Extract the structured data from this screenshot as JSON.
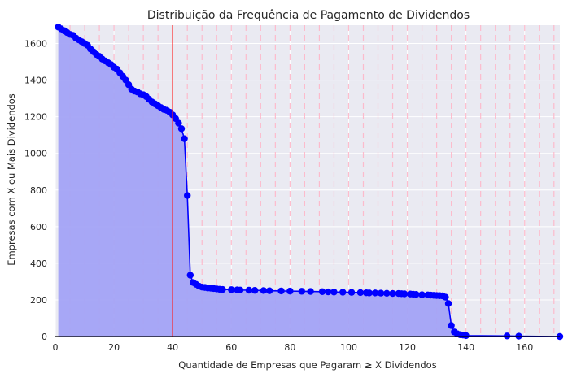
{
  "chart_data": {
    "type": "line",
    "title": "Distribuição da Frequência de Pagamento de Dividendos",
    "xlabel": "Quantidade de Empresas que Pagaram ≥ X Dividendos",
    "ylabel": "Empresas com X ou Mais Dividendos",
    "xlim": [
      0,
      172
    ],
    "ylim": [
      0,
      1700
    ],
    "x_ticks": [
      "0",
      "20",
      "40",
      "60",
      "80",
      "100",
      "120",
      "140",
      "160"
    ],
    "y_ticks": [
      "0",
      "200",
      "400",
      "600",
      "800",
      "1000",
      "1200",
      "1400",
      "1600"
    ],
    "grid": true,
    "fill_under_curve": true,
    "colors": {
      "background": "#eaeaf2",
      "grid": "#ffffff",
      "series": "#0000ff",
      "fill": "#a3a3f5",
      "vline": "#ff2020",
      "dashed_vlines": "#ffb6c8"
    },
    "vertical_line_x": 40,
    "dashed_vlines_x": [
      5,
      10,
      15,
      20,
      25,
      30,
      35,
      45,
      50,
      55,
      60,
      65,
      70,
      75,
      80,
      85,
      90,
      95,
      100,
      105,
      110,
      115,
      120,
      125,
      130,
      135,
      140,
      145,
      150,
      155,
      160,
      165,
      170
    ],
    "series": [
      {
        "x": [
          1,
          2,
          3,
          4,
          5,
          6,
          7,
          8,
          9,
          10,
          11,
          12,
          13,
          14,
          15,
          16,
          17,
          18,
          19,
          20,
          21,
          22,
          23,
          24,
          25,
          26,
          27,
          28,
          29,
          30,
          31,
          32,
          33,
          34,
          35,
          36,
          37,
          38,
          39,
          40,
          41,
          42,
          43,
          44,
          45,
          46,
          47,
          48,
          49,
          50,
          51,
          52,
          53,
          54,
          55,
          56,
          57,
          60,
          62,
          63,
          66,
          68,
          71,
          73,
          77,
          80,
          84,
          87,
          91,
          93,
          95,
          98,
          101,
          104,
          106,
          107,
          109,
          111,
          113,
          115,
          117,
          118,
          119,
          121,
          122,
          123,
          125,
          127,
          128,
          129,
          130,
          131,
          132,
          133,
          134,
          135,
          136,
          137,
          138,
          139,
          140,
          154,
          158,
          172
        ],
        "y": [
          1690,
          1680,
          1670,
          1660,
          1650,
          1645,
          1630,
          1620,
          1610,
          1600,
          1590,
          1570,
          1555,
          1540,
          1530,
          1515,
          1505,
          1495,
          1485,
          1470,
          1460,
          1440,
          1420,
          1400,
          1375,
          1350,
          1340,
          1335,
          1325,
          1320,
          1310,
          1295,
          1280,
          1270,
          1260,
          1250,
          1240,
          1235,
          1225,
          1210,
          1190,
          1165,
          1135,
          1080,
          770,
          335,
          295,
          285,
          275,
          270,
          268,
          265,
          264,
          262,
          260,
          258,
          257,
          256,
          255,
          254,
          253,
          252,
          251,
          250,
          249,
          248,
          247,
          246,
          245,
          244,
          243,
          242,
          241,
          240,
          239,
          238,
          238,
          237,
          236,
          235,
          235,
          234,
          233,
          232,
          231,
          230,
          228,
          227,
          226,
          225,
          224,
          223,
          222,
          215,
          180,
          60,
          25,
          15,
          10,
          8,
          5,
          3,
          2,
          0
        ]
      }
    ]
  }
}
